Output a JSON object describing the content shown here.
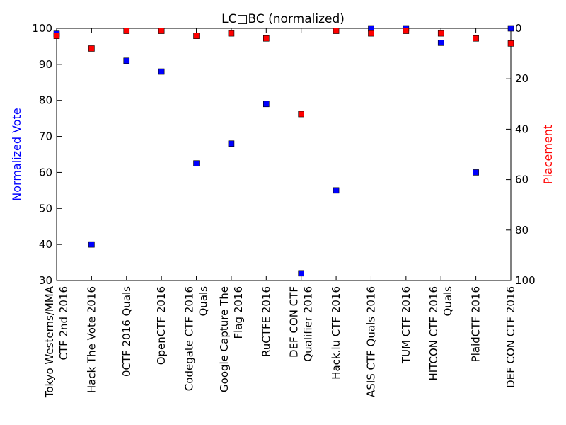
{
  "chart_data": {
    "type": "scatter",
    "title": "LC□BC (normalized)",
    "ylabel_left": "Normalized Vote",
    "ylabel_right": "Placement",
    "ylim_left": [
      30,
      100
    ],
    "yticks_left": [
      30,
      40,
      50,
      60,
      70,
      80,
      90,
      100
    ],
    "ylim_right_inverted": [
      0,
      100
    ],
    "yticks_right": [
      0,
      20,
      40,
      60,
      80,
      100
    ],
    "grid": false,
    "colors": {
      "vote": "#0000ff",
      "placement": "#ff0000"
    },
    "categories": [
      [
        "Tokyo Westerns/MMA",
        "CTF 2nd 2016"
      ],
      [
        "Hack The Vote 2016"
      ],
      [
        "0CTF 2016 Quals"
      ],
      [
        "OpenCTF 2016"
      ],
      [
        "Codegate CTF 2016",
        "Quals"
      ],
      [
        "Google Capture The",
        "Flag 2016"
      ],
      [
        "RuCTFE 2016"
      ],
      [
        "DEF CON CTF",
        "Qualifier 2016"
      ],
      [
        "Hack.lu CTF 2016"
      ],
      [
        "ASIS CTF Quals 2016"
      ],
      [
        "TUM CTF 2016"
      ],
      [
        "HITCON CTF 2016",
        "Quals"
      ],
      [
        "PlaidCTF 2016"
      ],
      [
        "DEF CON CTF 2016"
      ]
    ],
    "series": [
      {
        "axis": "left",
        "values": [
          98.5,
          40,
          91,
          88,
          62.5,
          68,
          79,
          32,
          55,
          100,
          100,
          96,
          60,
          100
        ]
      },
      {
        "axis": "right",
        "values": [
          3,
          8,
          1,
          1,
          3,
          2,
          4,
          34,
          1,
          2,
          1,
          2,
          4,
          6
        ]
      }
    ]
  }
}
